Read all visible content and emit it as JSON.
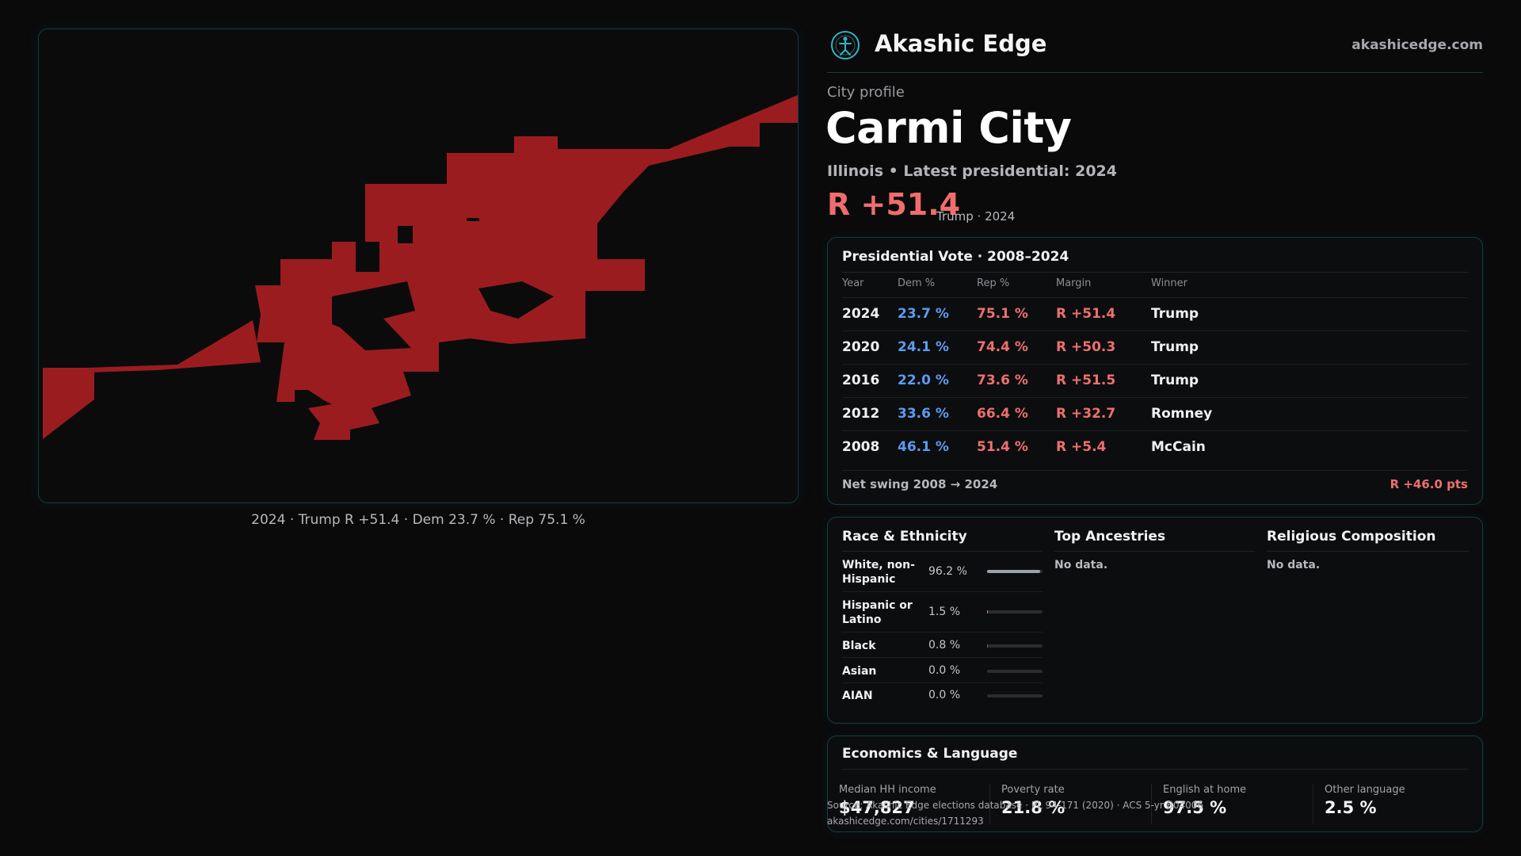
{
  "brand": {
    "name": "Akashic Edge",
    "url": "akashicedge.com",
    "logo_icon": "globe-figure-icon",
    "accent_color": "#2fb4c3"
  },
  "map": {
    "caption": "2024 · Trump R +51.4 · Dem 23.7 % · Rep 75.1 %",
    "fill_color": "#9b1c1f"
  },
  "city": {
    "eyebrow": "City profile",
    "name": "Carmi City",
    "subtitle": "Illinois • Latest presidential: 2024",
    "margin": "R +51.4",
    "margin_note": "Trump · 2024"
  },
  "presidential": {
    "title": "Presidential Vote · 2008–2024",
    "headers": {
      "year": "Year",
      "dem": "Dem %",
      "rep": "Rep %",
      "margin": "Margin",
      "winner": "Winner"
    },
    "rows": [
      {
        "year": "2024",
        "dem": "23.7 %",
        "rep": "75.1 %",
        "margin": "R +51.4",
        "winner": "Trump"
      },
      {
        "year": "2020",
        "dem": "24.1 %",
        "rep": "74.4 %",
        "margin": "R +50.3",
        "winner": "Trump"
      },
      {
        "year": "2016",
        "dem": "22.0 %",
        "rep": "73.6 %",
        "margin": "R +51.5",
        "winner": "Trump"
      },
      {
        "year": "2012",
        "dem": "33.6 %",
        "rep": "66.4 %",
        "margin": "R +32.7",
        "winner": "Romney"
      },
      {
        "year": "2008",
        "dem": "46.1 %",
        "rep": "51.4 %",
        "margin": "R +5.4",
        "winner": "McCain"
      }
    ],
    "swing_label": "Net swing 2008 → 2024",
    "swing_value": "R +46.0 pts"
  },
  "demographics": {
    "race_title": "Race & Ethnicity",
    "race": [
      {
        "label": "White, non-Hispanic",
        "pct": "96.2 %",
        "value": 0.962,
        "color": "#9aa3ad"
      },
      {
        "label": "Hispanic or Latino",
        "pct": "1.5 %",
        "value": 0.015,
        "color": "#e08a3c"
      },
      {
        "label": "Black",
        "pct": "0.8 %",
        "value": 0.008,
        "color": "#6b6f73"
      },
      {
        "label": "Asian",
        "pct": "0.0 %",
        "value": 0.0,
        "color": "#6b6f73"
      },
      {
        "label": "AIAN",
        "pct": "0.0 %",
        "value": 0.0,
        "color": "#6b6f73"
      }
    ],
    "ancestry_title": "Top Ancestries",
    "ancestry_nodata": "No data.",
    "religion_title": "Religious Composition",
    "religion_nodata": "No data."
  },
  "economics": {
    "title": "Economics & Language",
    "stats": [
      {
        "label": "Median HH income",
        "value": "$47,827"
      },
      {
        "label": "Poverty rate",
        "value": "21.8 %"
      },
      {
        "label": "English at home",
        "value": "97.5 %"
      },
      {
        "label": "Other language",
        "value": "2.5 %"
      }
    ]
  },
  "source": {
    "line1": "Source: Akashic Edge elections database · PL 94-171 (2020) · ACS 5-yr B04006",
    "line2": "akashicedge.com/cities/1711293"
  }
}
